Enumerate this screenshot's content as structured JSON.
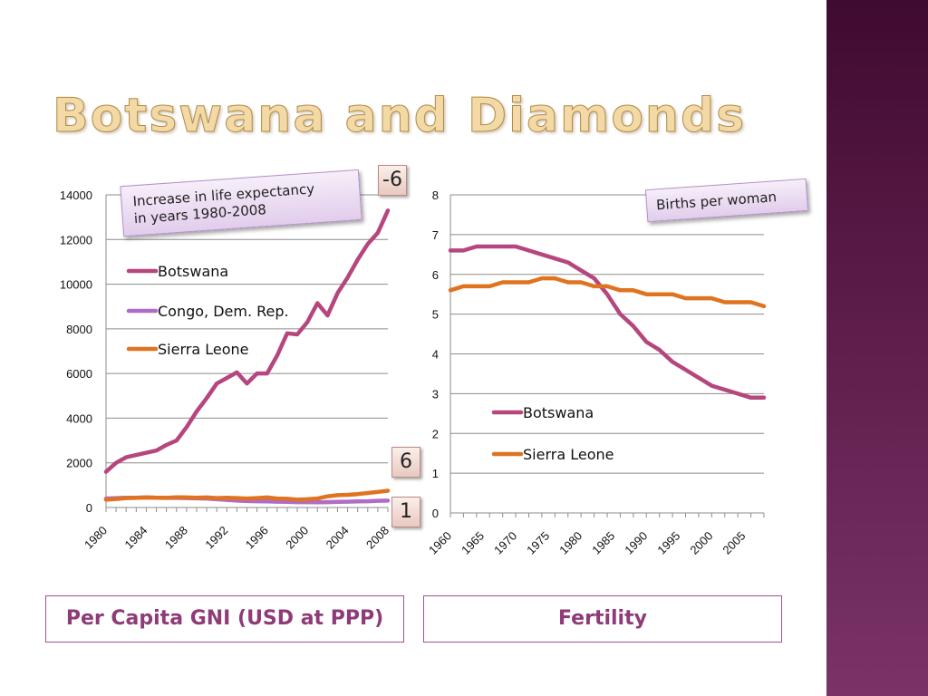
{
  "slide": {
    "title": "Botswana and Diamonds",
    "callout_left": "Increase in life expectancy\nin years 1980-2008",
    "callout_right": "Births per woman",
    "badges": [
      "-6",
      "6",
      "1"
    ],
    "caption_left": "Per Capita GNI (USD at PPP)",
    "caption_right": "Fertility"
  },
  "colors": {
    "botswana": "#b5467e",
    "congo": "#b06cc6",
    "sierra_leone": "#e0731f",
    "grid": "#8c8c8c",
    "accent": "#8e3b78"
  },
  "chart_data": [
    {
      "type": "line",
      "x": [
        1980,
        1981,
        1982,
        1983,
        1984,
        1985,
        1986,
        1987,
        1988,
        1989,
        1990,
        1991,
        1992,
        1993,
        1994,
        1995,
        1996,
        1997,
        1998,
        1999,
        2000,
        2001,
        2002,
        2003,
        2004,
        2005,
        2006,
        2007,
        2008
      ],
      "x_tick_labels": [
        "1980",
        "1984",
        "1988",
        "1992",
        "1996",
        "2000",
        "2004",
        "2008"
      ],
      "ylim": [
        0,
        14000
      ],
      "y_ticks": [
        0,
        2000,
        4000,
        6000,
        8000,
        10000,
        12000,
        14000
      ],
      "grid": true,
      "legend_position": "left-inside",
      "series": [
        {
          "name": "Botswana",
          "color_key": "botswana",
          "values": [
            1600,
            2000,
            2250,
            2350,
            2450,
            2550,
            2800,
            3000,
            3600,
            4300,
            4900,
            5550,
            5800,
            6050,
            5550,
            6000,
            6000,
            6800,
            7800,
            7750,
            8300,
            9150,
            8600,
            9600,
            10300,
            11100,
            11800,
            12300,
            13300
          ]
        },
        {
          "name": "Congo, Dem. Rep.",
          "color_key": "congo",
          "values": [
            400,
            420,
            440,
            440,
            450,
            440,
            430,
            430,
            420,
            410,
            400,
            370,
            340,
            310,
            290,
            280,
            270,
            260,
            250,
            240,
            240,
            230,
            240,
            250,
            260,
            270,
            280,
            300,
            310
          ]
        },
        {
          "name": "Sierra Leone",
          "color_key": "sierra_leone",
          "values": [
            350,
            380,
            420,
            430,
            450,
            440,
            430,
            460,
            450,
            440,
            450,
            420,
            440,
            420,
            400,
            420,
            450,
            400,
            390,
            350,
            370,
            400,
            500,
            550,
            570,
            600,
            650,
            700,
            750
          ]
        }
      ]
    },
    {
      "type": "line",
      "x": [
        1960,
        1962,
        1964,
        1966,
        1968,
        1970,
        1972,
        1974,
        1976,
        1978,
        1980,
        1982,
        1984,
        1986,
        1988,
        1990,
        1992,
        1994,
        1996,
        1998,
        2000,
        2002,
        2004,
        2006,
        2008
      ],
      "x_tick_labels": [
        "1960",
        "1965",
        "1970",
        "1975",
        "1980",
        "1985",
        "1990",
        "1995",
        "2000",
        "2005"
      ],
      "x_tick_values": [
        1960,
        1965,
        1970,
        1975,
        1980,
        1985,
        1990,
        1995,
        2000,
        2005
      ],
      "ylim": [
        0,
        8
      ],
      "y_ticks": [
        0,
        1,
        2,
        3,
        4,
        5,
        6,
        7,
        8
      ],
      "grid": true,
      "legend_position": "center-right",
      "series": [
        {
          "name": "Botswana",
          "color_key": "botswana",
          "values": [
            6.6,
            6.6,
            6.7,
            6.7,
            6.7,
            6.7,
            6.6,
            6.5,
            6.4,
            6.3,
            6.1,
            5.9,
            5.5,
            5.0,
            4.7,
            4.3,
            4.1,
            3.8,
            3.6,
            3.4,
            3.2,
            3.1,
            3.0,
            2.9,
            2.9
          ]
        },
        {
          "name": "Sierra Leone",
          "color_key": "sierra_leone",
          "values": [
            5.6,
            5.7,
            5.7,
            5.7,
            5.8,
            5.8,
            5.8,
            5.9,
            5.9,
            5.8,
            5.8,
            5.7,
            5.7,
            5.6,
            5.6,
            5.5,
            5.5,
            5.5,
            5.4,
            5.4,
            5.4,
            5.3,
            5.3,
            5.3,
            5.2
          ]
        }
      ]
    }
  ]
}
